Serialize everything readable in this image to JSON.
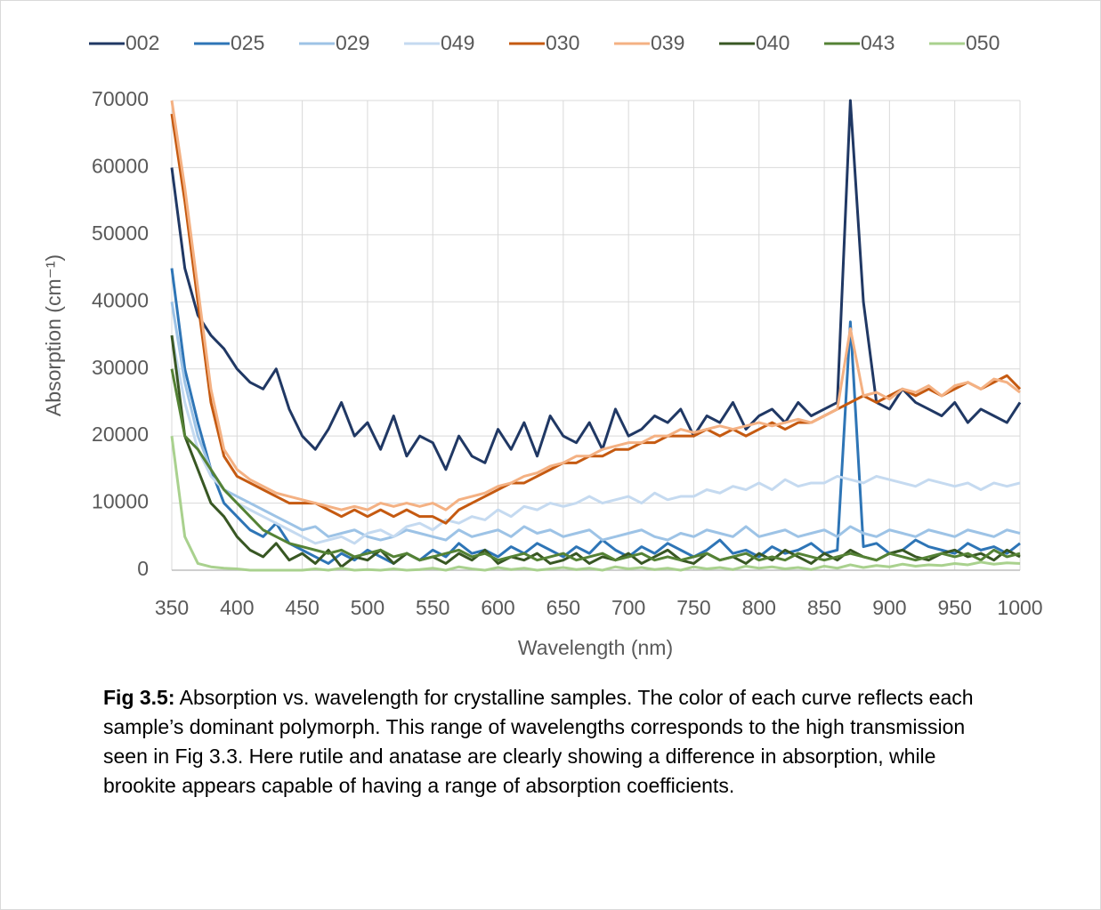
{
  "chart_data": {
    "type": "line",
    "y_label": "Absorption (cm⁻¹)",
    "x_label": "Wavelength (nm)",
    "x": [
      350,
      360,
      370,
      380,
      390,
      400,
      410,
      420,
      430,
      440,
      450,
      460,
      470,
      480,
      490,
      500,
      510,
      520,
      530,
      540,
      550,
      560,
      570,
      580,
      590,
      600,
      610,
      620,
      630,
      640,
      650,
      660,
      670,
      680,
      690,
      700,
      710,
      720,
      730,
      740,
      750,
      760,
      770,
      780,
      790,
      800,
      810,
      820,
      830,
      840,
      850,
      860,
      870,
      880,
      890,
      900,
      910,
      920,
      930,
      940,
      950,
      960,
      970,
      980,
      990,
      1000
    ],
    "xlim": [
      350,
      1000
    ],
    "xticks": [
      350,
      400,
      450,
      500,
      550,
      600,
      650,
      700,
      750,
      800,
      850,
      900,
      950,
      1000
    ],
    "ylim": [
      0,
      70000
    ],
    "yticks": [
      0,
      10000,
      20000,
      30000,
      40000,
      50000,
      60000,
      70000
    ],
    "grid": true,
    "legend": "top",
    "series": [
      {
        "name": "002",
        "color": "#203864",
        "values": [
          60000,
          45000,
          38000,
          35000,
          33000,
          30000,
          28000,
          27000,
          30000,
          24000,
          20000,
          18000,
          21000,
          25000,
          20000,
          22000,
          18000,
          23000,
          17000,
          20000,
          19000,
          15000,
          20000,
          17000,
          16000,
          21000,
          18000,
          22000,
          17000,
          23000,
          20000,
          19000,
          22000,
          18000,
          24000,
          20000,
          21000,
          23000,
          22000,
          24000,
          20000,
          23000,
          22000,
          25000,
          21000,
          23000,
          24000,
          22000,
          25000,
          23000,
          24000,
          25000,
          70000,
          40000,
          25000,
          24000,
          27000,
          25000,
          24000,
          23000,
          25000,
          22000,
          24000,
          23000,
          22000,
          25000
        ]
      },
      {
        "name": "025",
        "color": "#2e75b6",
        "values": [
          45000,
          30000,
          22000,
          15000,
          10000,
          8000,
          6000,
          5000,
          7000,
          4000,
          3000,
          2000,
          1000,
          2500,
          1500,
          3000,
          2000,
          1000,
          2500,
          1500,
          3000,
          2000,
          4000,
          2500,
          3000,
          2000,
          3500,
          2500,
          4000,
          3000,
          2000,
          3500,
          2500,
          4500,
          3000,
          2000,
          3500,
          2500,
          4000,
          3000,
          2000,
          3000,
          4500,
          2500,
          3000,
          2000,
          3500,
          2500,
          3000,
          4000,
          2500,
          3000,
          37000,
          3500,
          4000,
          2500,
          3000,
          4500,
          3500,
          3000,
          2500,
          4000,
          3000,
          3500,
          2500,
          4000
        ]
      },
      {
        "name": "029",
        "color": "#9dc3e6",
        "values": [
          40000,
          28000,
          20000,
          15000,
          12000,
          11000,
          10000,
          9000,
          8000,
          7000,
          6000,
          6500,
          5000,
          5500,
          6000,
          5000,
          4500,
          5000,
          6000,
          5500,
          5000,
          4500,
          6000,
          5000,
          5500,
          6000,
          5000,
          6500,
          5500,
          6000,
          5000,
          5500,
          6000,
          4500,
          5000,
          5500,
          6000,
          5000,
          4500,
          5500,
          5000,
          6000,
          5500,
          5000,
          6500,
          5000,
          5500,
          6000,
          5000,
          5500,
          6000,
          5000,
          6500,
          5500,
          5000,
          6000,
          5500,
          5000,
          6000,
          5500,
          5000,
          6000,
          5500,
          5000,
          6000,
          5500
        ]
      },
      {
        "name": "049",
        "color": "#c5daf0",
        "values": [
          35000,
          25000,
          18000,
          14000,
          12000,
          10000,
          9000,
          8000,
          7000,
          6000,
          5000,
          4000,
          4500,
          5000,
          4000,
          5500,
          6000,
          5000,
          6500,
          7000,
          6000,
          7500,
          7000,
          8000,
          7500,
          9000,
          8000,
          9500,
          9000,
          10000,
          9500,
          10000,
          11000,
          10000,
          10500,
          11000,
          10000,
          11500,
          10500,
          11000,
          11000,
          12000,
          11500,
          12500,
          12000,
          13000,
          12000,
          13500,
          12500,
          13000,
          13000,
          14000,
          13500,
          13000,
          14000,
          13500,
          13000,
          12500,
          13500,
          13000,
          12500,
          13000,
          12000,
          13000,
          12500,
          13000
        ]
      },
      {
        "name": "030",
        "color": "#c55a11",
        "values": [
          68000,
          55000,
          40000,
          25000,
          17000,
          14000,
          13000,
          12000,
          11000,
          10000,
          10000,
          10000,
          9000,
          8000,
          9000,
          8000,
          9000,
          8000,
          9000,
          8000,
          8000,
          7000,
          9000,
          10000,
          11000,
          12000,
          13000,
          13000,
          14000,
          15000,
          16000,
          16000,
          17000,
          17000,
          18000,
          18000,
          19000,
          19000,
          20000,
          20000,
          20000,
          21000,
          20000,
          21000,
          20000,
          21000,
          22000,
          21000,
          22000,
          22000,
          23000,
          24000,
          25000,
          26000,
          25000,
          26000,
          27000,
          26000,
          27000,
          26000,
          27000,
          28000,
          27000,
          28000,
          29000,
          27000
        ]
      },
      {
        "name": "039",
        "color": "#f4b183",
        "values": [
          70000,
          57000,
          42000,
          27000,
          18000,
          15000,
          13500,
          12500,
          11500,
          11000,
          10500,
          10000,
          9500,
          9000,
          9500,
          9000,
          10000,
          9500,
          10000,
          9500,
          10000,
          9000,
          10500,
          11000,
          11500,
          12500,
          13000,
          14000,
          14500,
          15500,
          16000,
          17000,
          17000,
          18000,
          18500,
          19000,
          19000,
          20000,
          20000,
          21000,
          20500,
          21000,
          21500,
          21000,
          21500,
          22000,
          21500,
          22000,
          22500,
          22000,
          23000,
          24000,
          36000,
          26000,
          26500,
          25500,
          27000,
          26500,
          27500,
          26000,
          27500,
          28000,
          27000,
          28500,
          28000,
          26500
        ]
      },
      {
        "name": "040",
        "color": "#385723",
        "values": [
          35000,
          20000,
          15000,
          10000,
          8000,
          5000,
          3000,
          2000,
          4000,
          1500,
          2500,
          1000,
          3000,
          500,
          2000,
          1500,
          3000,
          1000,
          2500,
          1500,
          2000,
          1000,
          2500,
          1500,
          3000,
          1000,
          2000,
          1500,
          2500,
          1000,
          1500,
          2500,
          1000,
          2000,
          1500,
          2500,
          1000,
          2000,
          3000,
          1500,
          1000,
          2500,
          1500,
          2000,
          1000,
          2500,
          1500,
          3000,
          2000,
          1000,
          2500,
          1500,
          3000,
          2000,
          1500,
          2500,
          3000,
          2000,
          1500,
          2500,
          3000,
          2000,
          2500,
          1500,
          3000,
          2000
        ]
      },
      {
        "name": "043",
        "color": "#548235",
        "values": [
          30000,
          20000,
          18000,
          15000,
          12000,
          10000,
          8000,
          6000,
          5000,
          4000,
          3500,
          3000,
          2500,
          3000,
          2000,
          2500,
          3000,
          2000,
          2500,
          1500,
          2000,
          2500,
          3000,
          2000,
          2500,
          1500,
          2000,
          2500,
          1500,
          2000,
          2500,
          1500,
          2000,
          2500,
          1500,
          2000,
          2500,
          1500,
          2000,
          1500,
          2000,
          2500,
          1500,
          2000,
          2500,
          1500,
          2000,
          1500,
          2500,
          2000,
          1500,
          2000,
          2500,
          2000,
          1500,
          2500,
          2000,
          1500,
          2000,
          2500,
          2000,
          2500,
          1500,
          3000,
          2000,
          2500
        ]
      },
      {
        "name": "050",
        "color": "#a9d18e",
        "values": [
          20000,
          5000,
          1000,
          500,
          300,
          200,
          0,
          0,
          0,
          0,
          0,
          200,
          0,
          300,
          0,
          100,
          0,
          200,
          0,
          100,
          300,
          0,
          500,
          200,
          0,
          400,
          100,
          300,
          0,
          200,
          400,
          100,
          300,
          0,
          500,
          200,
          400,
          100,
          300,
          0,
          500,
          200,
          400,
          100,
          600,
          300,
          500,
          200,
          400,
          100,
          600,
          300,
          800,
          400,
          700,
          500,
          900,
          600,
          800,
          700,
          1000,
          800,
          1200,
          900,
          1100,
          1000
        ]
      }
    ]
  },
  "caption": {
    "label": "Fig 3.5:",
    "text": " Absorption vs. wavelength for crystalline samples. The color of each curve reflects each sample’s dominant polymorph. This range of wavelengths corresponds to the high transmission seen in Fig 3.3. Here rutile and anatase are clearly showing a difference in absorption, while brookite appears capable of having a range of absorption coefficients."
  }
}
